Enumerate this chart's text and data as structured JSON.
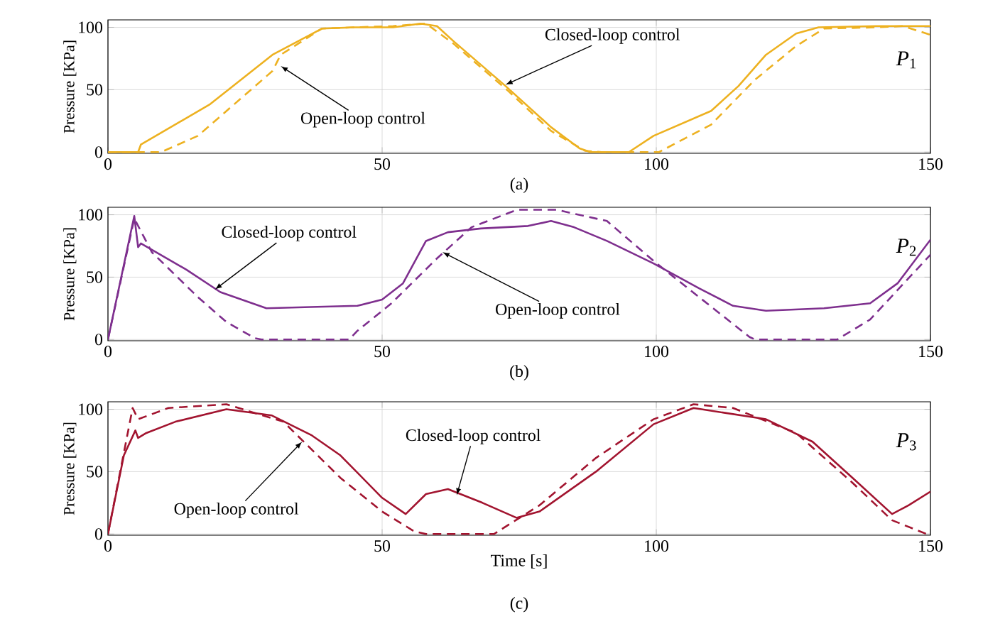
{
  "chart_data": [
    {
      "type": "line",
      "ylabel": "Pressure [KPa]",
      "xlim": [
        0,
        150
      ],
      "ylim": [
        -1,
        106
      ],
      "xticks": [
        0,
        50,
        100,
        150
      ],
      "yticks": [
        0,
        50,
        100
      ],
      "grid": true,
      "annotations": [
        "*P*$_{1}$",
        "(a)",
        {
          "text": "Closed-loop control",
          "x": 72.5,
          "y": 54
        },
        {
          "text": "Open-loop control",
          "x": 31.5,
          "y": 69
        }
      ],
      "series": [
        {
          "color": "#edb120",
          "line_style": "solid",
          "x": [
            0,
            5.5,
            6,
            18.5,
            30,
            39,
            45,
            52,
            57,
            60,
            63,
            72.5,
            80.8,
            86,
            88,
            95,
            99.5,
            110,
            115,
            120,
            125.5,
            129.6,
            140,
            150
          ],
          "values": [
            0,
            0,
            6,
            38,
            78,
            99,
            100,
            100,
            103,
            101,
            89,
            53,
            20,
            3,
            0,
            0,
            13,
            33,
            53,
            78,
            95,
            100,
            101,
            101
          ]
        },
        {
          "color": "#edb120",
          "line_style": "dashed",
          "x": [
            0,
            9.7,
            16.4,
            30,
            31.5,
            39,
            45,
            52,
            58,
            63,
            73,
            80.8,
            87,
            90,
            98,
            100.5,
            110,
            118,
            125.5,
            130.6,
            140,
            145,
            150
          ],
          "values": [
            0,
            0,
            13,
            65,
            78,
            99,
            100,
            101,
            103,
            87,
            49,
            17,
            1,
            0,
            0,
            0,
            22,
            58,
            85,
            99,
            100,
            101,
            94
          ]
        }
      ]
    },
    {
      "type": "line",
      "ylabel": "Pressure [KPa]",
      "xlim": [
        0,
        150
      ],
      "ylim": [
        -1,
        106
      ],
      "xticks": [
        0,
        50,
        100,
        150
      ],
      "yticks": [
        0,
        50,
        100
      ],
      "grid": true,
      "annotations": [
        "*P*$_{2}$",
        "(b)",
        {
          "text": "Closed-loop control",
          "x": 19.5,
          "y": 40
        },
        {
          "text": "Open-loop control",
          "x": 61,
          "y": 70
        }
      ],
      "series": [
        {
          "color": "#7e2f8e",
          "line_style": "solid",
          "x": [
            0,
            4.8,
            5.5,
            6,
            14.3,
            20.5,
            28.9,
            37,
            45.5,
            50,
            53.8,
            58,
            62,
            68,
            76.6,
            80.8,
            85,
            91,
            99.5,
            107.8,
            114,
            120,
            130.6,
            139,
            144,
            150
          ],
          "values": [
            0,
            99,
            74,
            77,
            56,
            38,
            25,
            26,
            27,
            32,
            45,
            79,
            86,
            89,
            91,
            95,
            90,
            79,
            61,
            41,
            27,
            23,
            25,
            29,
            45,
            80
          ]
        },
        {
          "color": "#7e2f8e",
          "line_style": "dashed",
          "x": [
            0,
            4.8,
            8,
            16.4,
            21.6,
            26.8,
            28,
            44,
            45.5,
            51.7,
            60,
            66.3,
            74.6,
            81.8,
            91,
            99.5,
            107.8,
            117,
            118,
            133,
            139,
            150
          ],
          "values": [
            0,
            97,
            70,
            34,
            14,
            1,
            0,
            0,
            7,
            29,
            65,
            90,
            104,
            104,
            95,
            63,
            34,
            2,
            0,
            0,
            16,
            68
          ]
        }
      ]
    },
    {
      "type": "line",
      "xlabel": "Time [s]",
      "ylabel": "Pressure [KPa]",
      "xlim": [
        0,
        150
      ],
      "ylim": [
        -1,
        106
      ],
      "xticks": [
        0,
        50,
        100,
        150
      ],
      "yticks": [
        0,
        50,
        100
      ],
      "grid": true,
      "annotations": [
        "*P*$_{3}$",
        "(c)",
        {
          "text": "Closed-loop control",
          "x": 63.6,
          "y": 31
        },
        {
          "text": "Open-loop control",
          "x": 35.4,
          "y": 74
        }
      ],
      "series": [
        {
          "color": "#a2142f",
          "line_style": "solid",
          "x": [
            0,
            2.9,
            5,
            5.5,
            7,
            12.3,
            21.6,
            29.9,
            37.2,
            42.4,
            50,
            54.3,
            58,
            62,
            68.3,
            74.5,
            78.7,
            89,
            99.5,
            106.8,
            120,
            128.5,
            135.8,
            143,
            146,
            150
          ],
          "values": [
            0,
            63,
            83,
            77,
            81,
            90,
            100,
            95,
            79,
            63,
            29,
            16,
            32,
            36,
            25,
            13,
            18,
            50,
            88,
            101,
            92,
            74,
            45,
            16,
            23,
            34
          ]
        },
        {
          "color": "#a2142f",
          "line_style": "dashed",
          "x": [
            0,
            4.5,
            5.5,
            11,
            21.6,
            32,
            42.4,
            50,
            55.9,
            58,
            70.4,
            78.7,
            89,
            99.5,
            106.8,
            114,
            125.5,
            135.8,
            143,
            149.3
          ],
          "values": [
            0,
            101,
            92,
            101,
            104,
            90,
            45,
            18,
            2,
            0,
            0,
            23,
            61,
            92,
            104,
            101,
            81,
            41,
            11,
            0
          ]
        }
      ]
    }
  ]
}
